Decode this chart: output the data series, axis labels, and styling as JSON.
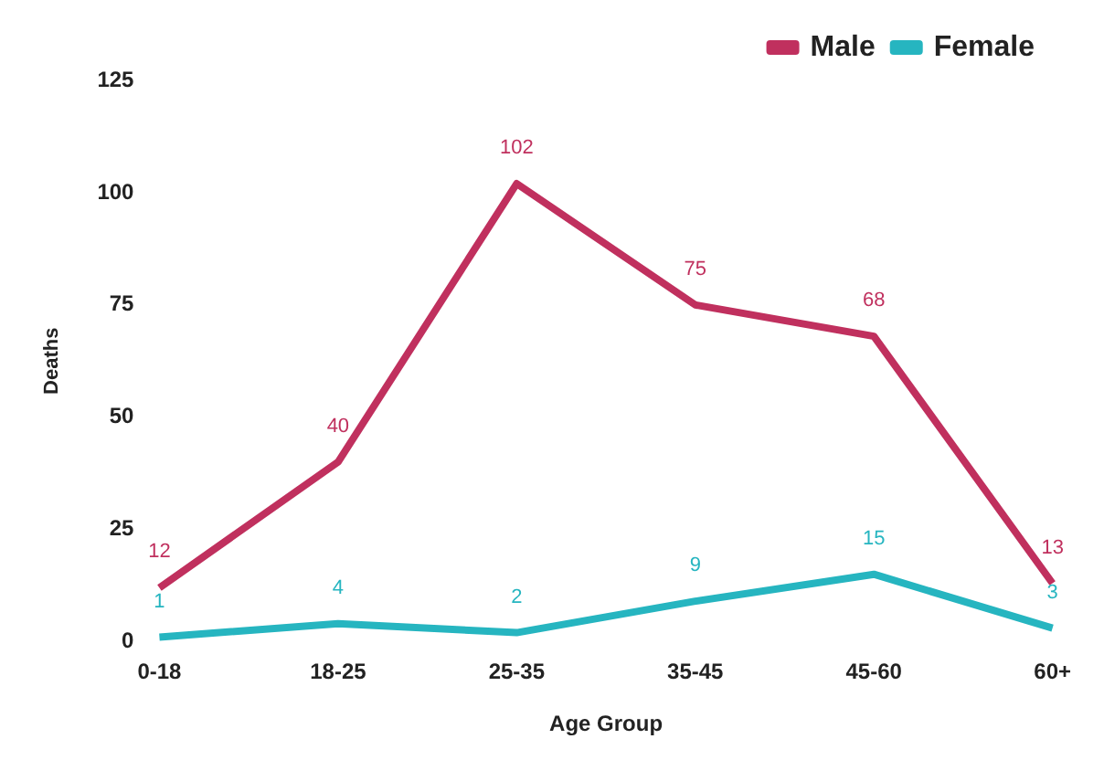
{
  "chart_data": {
    "type": "line",
    "xlabel": "Age Group",
    "ylabel": "Deaths",
    "categories": [
      "0-18",
      "18-25",
      "25-35",
      "35-45",
      "45-60",
      "60+"
    ],
    "series": [
      {
        "name": "Male",
        "color": "#c0305e",
        "values": [
          12,
          40,
          102,
          75,
          68,
          13
        ]
      },
      {
        "name": "Female",
        "color": "#26b5c0",
        "values": [
          1,
          4,
          2,
          9,
          15,
          3
        ]
      }
    ],
    "ylim": [
      0,
      125
    ],
    "yticks": [
      0,
      25,
      50,
      75,
      100,
      125
    ],
    "grid": false,
    "legend": "top right",
    "data_labels": true,
    "marker": "none",
    "line_style": "solid"
  }
}
